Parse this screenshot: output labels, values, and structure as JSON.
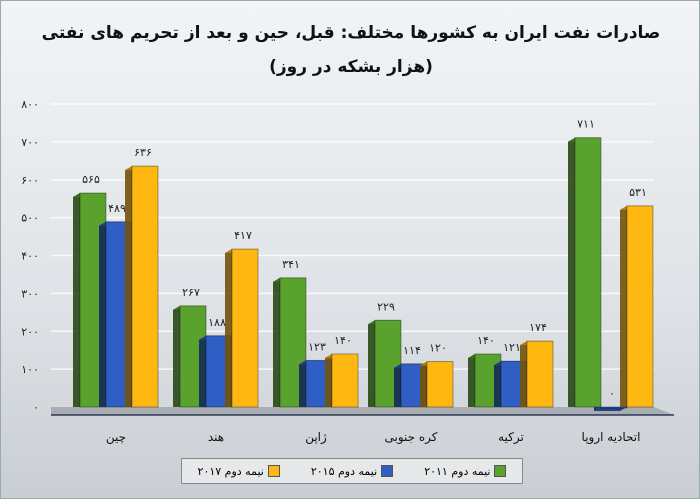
{
  "chart_data": {
    "type": "bar",
    "title": "صادرات نفت ایران به کشورها مختلف: قبل، حین و بعد از تحریم های نفتی",
    "subtitle": "(هزار بشکه در روز)",
    "categories": [
      "چین",
      "هند",
      "ژاپن",
      "کره جنوبی",
      "ترکیه",
      "اتحادیه اروپا"
    ],
    "series": [
      {
        "name": "نیمه دوم ۲۰۱۱",
        "color": "#5aa22e",
        "values": [
          565,
          267,
          341,
          229,
          140,
          711
        ],
        "labels": [
          "۵۶۵",
          "۲۶۷",
          "۳۴۱",
          "۲۲۹",
          "۱۴۰",
          "۷۱۱"
        ]
      },
      {
        "name": "نیمه دوم ۲۰۱۵",
        "color": "#2f5fc4",
        "values": [
          489,
          188,
          123,
          114,
          121,
          0
        ],
        "labels": [
          "۴۸۹",
          "۱۸۸",
          "۱۲۳",
          "۱۱۴",
          "۱۲۱",
          "۰"
        ]
      },
      {
        "name": "نیمه دوم ۲۰۱۷",
        "color": "#ffb812",
        "values": [
          636,
          417,
          140,
          120,
          174,
          531
        ],
        "labels": [
          "۶۳۶",
          "۴۱۷",
          "۱۴۰",
          "۱۲۰",
          "۱۷۴",
          "۵۳۱"
        ]
      }
    ],
    "yticks": [
      0,
      100,
      200,
      300,
      400,
      500,
      600,
      700,
      800
    ],
    "ytick_labels": [
      "۰",
      "۱۰۰",
      "۲۰۰",
      "۳۰۰",
      "۴۰۰",
      "۵۰۰",
      "۶۰۰",
      "۷۰۰",
      "۸۰۰"
    ],
    "ylim": [
      0,
      800
    ],
    "grid": true,
    "legend": "bottom"
  }
}
